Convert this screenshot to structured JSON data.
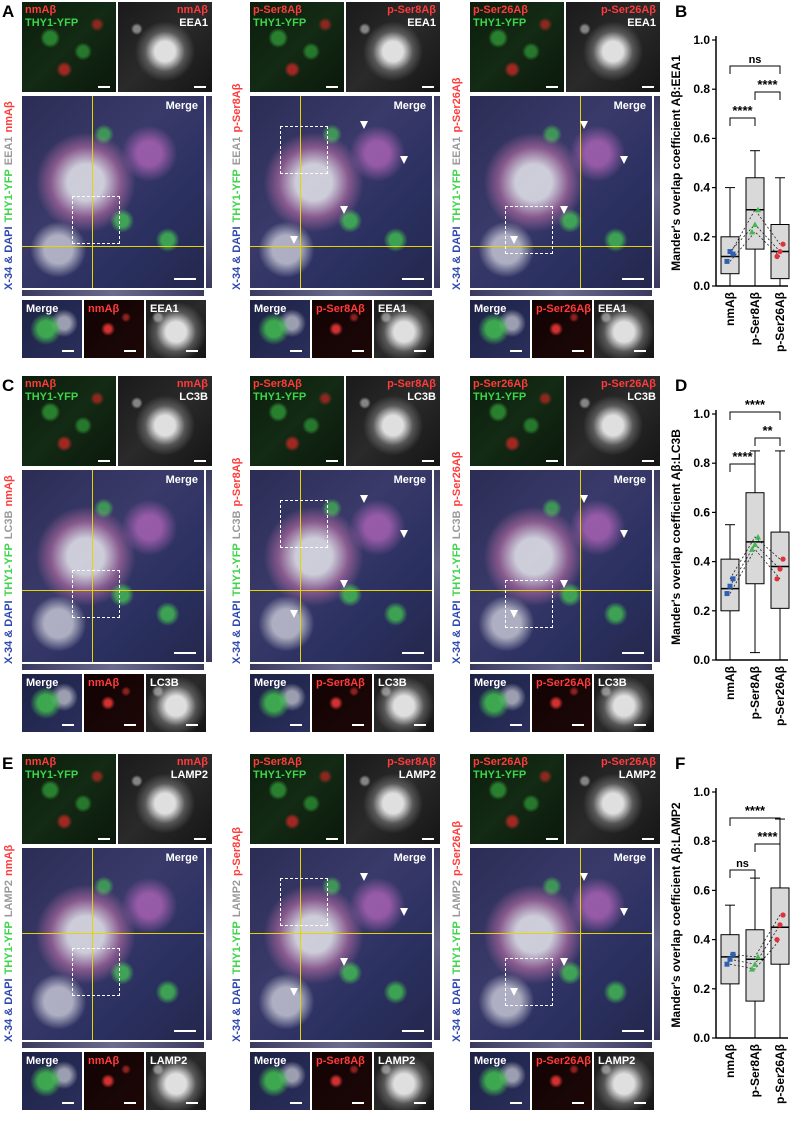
{
  "panels": [
    "A",
    "B",
    "C",
    "D",
    "E",
    "F"
  ],
  "rows": [
    {
      "marker": "EEA1",
      "columns": [
        {
          "abeta": "nmAβ",
          "top_left_labels": [
            "nmAβ",
            "THY1-YFP"
          ],
          "top_right_label": "nmAβ",
          "top_right_marker": "EEA1",
          "merge": "Merge",
          "side_label_prefix": "X-34 & DAPI",
          "side_label_green": "THY1-YFP",
          "side_label_gray": "EEA1",
          "side_label_red": "nmAβ",
          "bottom": [
            "Merge",
            "nmAβ",
            "EEA1"
          ]
        },
        {
          "abeta": "p-Ser8Aβ",
          "top_left_labels": [
            "p-Ser8Aβ",
            "THY1-YFP"
          ],
          "top_right_label": "p-Ser8Aβ",
          "top_right_marker": "EEA1",
          "merge": "Merge",
          "side_label_prefix": "X-34 & DAPI",
          "side_label_green": "THY1-YFP",
          "side_label_gray": "EEA1",
          "side_label_red": "p-Ser8Aβ",
          "bottom": [
            "Merge",
            "p-Ser8Aβ",
            "EEA1"
          ]
        },
        {
          "abeta": "p-Ser26Aβ",
          "top_left_labels": [
            "p-Ser26Aβ",
            "THY1-YFP"
          ],
          "top_right_label": "p-Ser26Aβ",
          "top_right_marker": "EEA1",
          "merge": "Merge",
          "side_label_prefix": "X-34 & DAPI",
          "side_label_green": "THY1-YFP",
          "side_label_gray": "EEA1",
          "side_label_red": "p-Ser26Aβ",
          "bottom": [
            "Merge",
            "p-Ser26Aβ",
            "EEA1"
          ]
        }
      ]
    },
    {
      "marker": "LC3B",
      "columns": [
        {
          "abeta": "nmAβ",
          "top_left_labels": [
            "nmAβ",
            "THY1-YFP"
          ],
          "top_right_label": "nmAβ",
          "top_right_marker": "LC3B",
          "merge": "Merge",
          "side_label_prefix": "X-34 & DAPI",
          "side_label_green": "THY1-YFP",
          "side_label_gray": "LC3B",
          "side_label_red": "nmAβ",
          "bottom": [
            "Merge",
            "nmAβ",
            "LC3B"
          ]
        },
        {
          "abeta": "p-Ser8Aβ",
          "top_left_labels": [
            "p-Ser8Aβ",
            "THY1-YFP"
          ],
          "top_right_label": "p-Ser8Aβ",
          "top_right_marker": "LC3B",
          "merge": "Merge",
          "side_label_prefix": "X-34 & DAPI",
          "side_label_green": "THY1-YFP",
          "side_label_gray": "LC3B",
          "side_label_red": "p-Ser8Aβ",
          "bottom": [
            "Merge",
            "p-Ser8Aβ",
            "LC3B"
          ]
        },
        {
          "abeta": "p-Ser26Aβ",
          "top_left_labels": [
            "p-Ser26Aβ",
            "THY1-YFP"
          ],
          "top_right_label": "p-Ser26Aβ",
          "top_right_marker": "LC3B",
          "merge": "Merge",
          "side_label_prefix": "X-34 & DAPI",
          "side_label_green": "THY1-YFP",
          "side_label_gray": "LC3B",
          "side_label_red": "p-Ser26Aβ",
          "bottom": [
            "Merge",
            "p-Ser26Aβ",
            "LC3B"
          ]
        }
      ]
    },
    {
      "marker": "LAMP2",
      "columns": [
        {
          "abeta": "nmAβ",
          "top_left_labels": [
            "nmAβ",
            "THY1-YFP"
          ],
          "top_right_label": "nmAβ",
          "top_right_marker": "LAMP2",
          "merge": "Merge",
          "side_label_prefix": "X-34 & DAPI",
          "side_label_green": "THY1-YFP",
          "side_label_gray": "LAMP2",
          "side_label_red": "nmAβ",
          "bottom": [
            "Merge",
            "nmAβ",
            "LAMP2"
          ]
        },
        {
          "abeta": "p-Ser8Aβ",
          "top_left_labels": [
            "p-Ser8Aβ",
            "THY1-YFP"
          ],
          "top_right_label": "p-Ser8Aβ",
          "top_right_marker": "LAMP2",
          "merge": "Merge",
          "side_label_prefix": "X-34 & DAPI",
          "side_label_green": "THY1-YFP",
          "side_label_gray": "LAMP2",
          "side_label_red": "p-Ser8Aβ",
          "bottom": [
            "Merge",
            "p-Ser8Aβ",
            "LAMP2"
          ]
        },
        {
          "abeta": "p-Ser26Aβ",
          "top_left_labels": [
            "p-Ser26Aβ",
            "THY1-YFP"
          ],
          "top_right_label": "p-Ser26Aβ",
          "top_right_marker": "LAMP2",
          "merge": "Merge",
          "side_label_prefix": "X-34 & DAPI",
          "side_label_green": "THY1-YFP",
          "side_label_gray": "LAMP2",
          "side_label_red": "p-Ser26Aβ",
          "bottom": [
            "Merge",
            "p-Ser26Aβ",
            "LAMP2"
          ]
        }
      ]
    }
  ],
  "colors": {
    "red_label": "#ff3b3b",
    "green_label": "#3fd44b",
    "white_label": "#ffffff",
    "crosshair": "#e6d400",
    "box_fill": "#d9d9d9",
    "point_blue": "#2e5fb0",
    "point_green": "#3cba4a",
    "point_red": "#e0303a"
  },
  "chart_data": [
    {
      "type": "box",
      "panel": "B",
      "ylabel": "Mander's overlap coefficient Aβ:EEA1",
      "categories": [
        "nmAβ",
        "p-Ser8Aβ",
        "p-Ser26Aβ"
      ],
      "ylim": [
        0,
        1.0
      ],
      "yticks": [
        "0.0",
        "0.2",
        "0.4",
        "0.6",
        "0.8",
        "1.0"
      ],
      "boxes": [
        {
          "min": 0.0,
          "q1": 0.05,
          "median": 0.12,
          "q3": 0.2,
          "max": 0.4
        },
        {
          "min": 0.0,
          "q1": 0.15,
          "median": 0.31,
          "q3": 0.44,
          "max": 0.55
        },
        {
          "min": 0.0,
          "q1": 0.03,
          "median": 0.14,
          "q3": 0.25,
          "max": 0.44
        }
      ],
      "points": [
        [
          0.1,
          0.14,
          0.13
        ],
        [
          0.22,
          0.25,
          0.31
        ],
        [
          0.12,
          0.14,
          0.17
        ]
      ],
      "significance": [
        {
          "from": 0,
          "to": 1,
          "label": "****"
        },
        {
          "from": 1,
          "to": 2,
          "label": "****"
        },
        {
          "from": 0,
          "to": 2,
          "label": "ns"
        }
      ]
    },
    {
      "type": "box",
      "panel": "D",
      "ylabel": "Mander's overlap coefficient Aβ:LC3B",
      "categories": [
        "nmAβ",
        "p-Ser8Aβ",
        "p-Ser26Aβ"
      ],
      "ylim": [
        0,
        1.0
      ],
      "yticks": [
        "0.0",
        "0.2",
        "0.4",
        "0.6",
        "0.8",
        "1.0"
      ],
      "boxes": [
        {
          "min": 0.0,
          "q1": 0.2,
          "median": 0.29,
          "q3": 0.41,
          "max": 0.55
        },
        {
          "min": 0.03,
          "q1": 0.31,
          "median": 0.48,
          "q3": 0.68,
          "max": 0.85
        },
        {
          "min": 0.0,
          "q1": 0.21,
          "median": 0.38,
          "q3": 0.52,
          "max": 0.85
        }
      ],
      "points": [
        [
          0.27,
          0.3,
          0.33
        ],
        [
          0.45,
          0.47,
          0.5
        ],
        [
          0.33,
          0.37,
          0.41
        ]
      ],
      "significance": [
        {
          "from": 0,
          "to": 1,
          "label": "****"
        },
        {
          "from": 1,
          "to": 2,
          "label": "**"
        },
        {
          "from": 0,
          "to": 2,
          "label": "****"
        }
      ]
    },
    {
      "type": "box",
      "panel": "F",
      "ylabel": "Mander's overlap coefficient Aβ:LAMP2",
      "categories": [
        "nmAβ",
        "p-Ser8Aβ",
        "p-Ser26Aβ"
      ],
      "ylim": [
        0,
        1.0
      ],
      "yticks": [
        "0.0",
        "0.2",
        "0.4",
        "0.6",
        "0.8",
        "1.0"
      ],
      "boxes": [
        {
          "min": 0.0,
          "q1": 0.22,
          "median": 0.33,
          "q3": 0.42,
          "max": 0.54
        },
        {
          "min": 0.0,
          "q1": 0.15,
          "median": 0.32,
          "q3": 0.44,
          "max": 0.65
        },
        {
          "min": 0.0,
          "q1": 0.3,
          "median": 0.45,
          "q3": 0.61,
          "max": 0.89
        }
      ],
      "points": [
        [
          0.3,
          0.32,
          0.34
        ],
        [
          0.28,
          0.3,
          0.33
        ],
        [
          0.4,
          0.46,
          0.5
        ]
      ],
      "significance": [
        {
          "from": 0,
          "to": 1,
          "label": "ns"
        },
        {
          "from": 1,
          "to": 2,
          "label": "****"
        },
        {
          "from": 0,
          "to": 2,
          "label": "****"
        }
      ]
    }
  ]
}
